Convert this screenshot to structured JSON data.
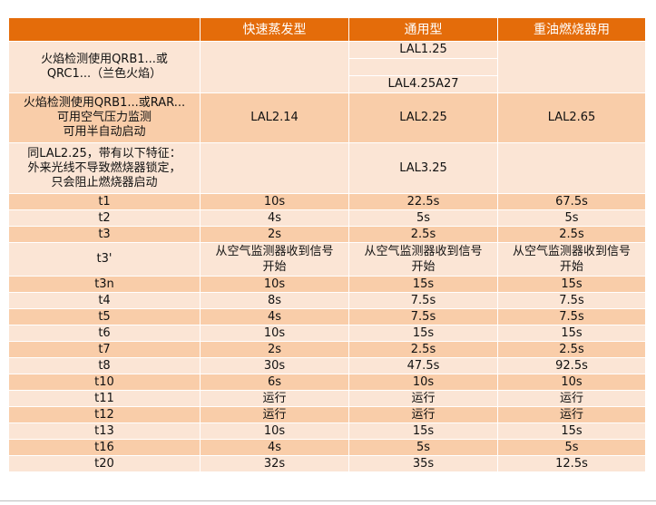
{
  "table": {
    "headers": [
      "",
      "快速蒸发型",
      "通用型",
      "重油燃烧器用"
    ],
    "groups": [
      {
        "label": "火焰检测使用QRB1...或\nQRC1...（兰色火焰）",
        "values": [
          "",
          "",
          ""
        ],
        "universal_sub": [
          "LAL1.25",
          "",
          "LAL4.25A27"
        ]
      },
      {
        "label": "火焰检测使用QRB1...或RAR...\n可用空气压力监测\n可用半自动启动",
        "values": [
          "LAL2.14",
          "LAL2.25",
          "LAL2.65"
        ]
      },
      {
        "label": "同LAL2.25，带有以下特征：\n外来光线不导致燃烧器锁定，\n只会阻止燃烧器启动",
        "values": [
          "",
          "LAL3.25",
          ""
        ]
      }
    ],
    "rows": [
      {
        "label": "t1",
        "values": [
          "10s",
          "22.5s",
          "67.5s"
        ]
      },
      {
        "label": "t2",
        "values": [
          "4s",
          "5s",
          "5s"
        ]
      },
      {
        "label": "t3",
        "values": [
          "2s",
          "2.5s",
          "2.5s"
        ]
      },
      {
        "label": "t3'",
        "values": [
          "从空气监测器收到信号\n开始",
          "从空气监测器收到信号\n开始",
          "从空气监测器收到信号\n开始"
        ]
      },
      {
        "label": "t3n",
        "values": [
          "10s",
          "15s",
          "15s"
        ]
      },
      {
        "label": "t4",
        "values": [
          "8s",
          "7.5s",
          "7.5s"
        ]
      },
      {
        "label": "t5",
        "values": [
          "4s",
          "7.5s",
          "7.5s"
        ]
      },
      {
        "label": "t6",
        "values": [
          "10s",
          "15s",
          "15s"
        ]
      },
      {
        "label": "t7",
        "values": [
          "2s",
          "2.5s",
          "2.5s"
        ]
      },
      {
        "label": "t8",
        "values": [
          "30s",
          "47.5s",
          "92.5s"
        ]
      },
      {
        "label": "t10",
        "values": [
          "6s",
          "10s",
          "10s"
        ]
      },
      {
        "label": "t11",
        "values": [
          "运行",
          "运行",
          "运行"
        ]
      },
      {
        "label": "t12",
        "values": [
          "运行",
          "运行",
          "运行"
        ]
      },
      {
        "label": "t13",
        "values": [
          "10s",
          "15s",
          "15s"
        ]
      },
      {
        "label": "t16",
        "values": [
          "4s",
          "5s",
          "5s"
        ]
      },
      {
        "label": "t20",
        "values": [
          "32s",
          "35s",
          "12.5s"
        ]
      }
    ]
  },
  "colors": {
    "header": "#e46c0a",
    "light": "#fbe5d5",
    "mid": "#f9cda9"
  }
}
